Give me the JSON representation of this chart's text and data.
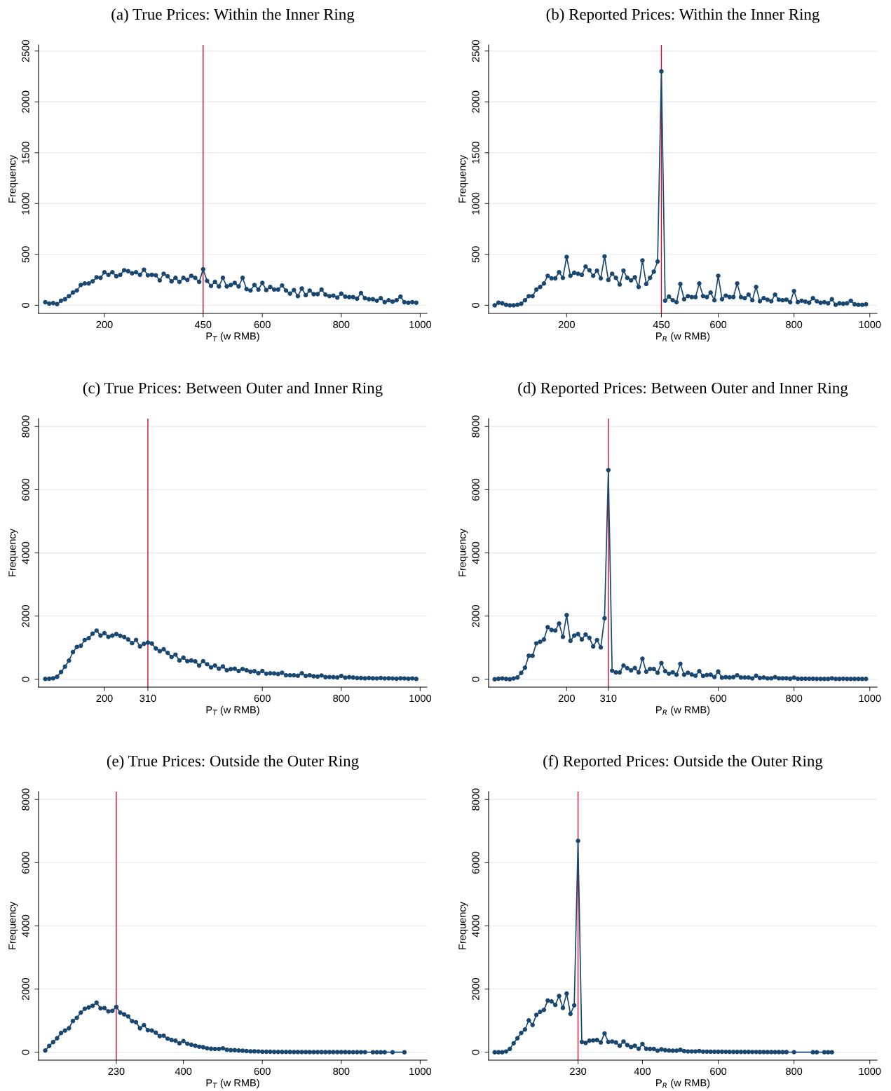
{
  "chart_data": [
    {
      "type": "line",
      "title": "(a) True Prices: Within the Inner Ring",
      "xlabel": "P$_{T}$ (w RMB)",
      "ylabel": "Frequency",
      "color": "#1a476f",
      "marker": "circle",
      "line_style": "solid",
      "grid": "y",
      "xlim": [
        33,
        1017
      ],
      "ylim": [
        -80,
        2560
      ],
      "xticks": [
        200,
        450,
        600,
        800,
        1000
      ],
      "yticks": [
        0,
        500,
        1000,
        1500,
        2000,
        2500
      ],
      "ref_lines": [
        {
          "axis": "x",
          "value": 450,
          "color": "#c8102e"
        }
      ],
      "x": [
        50,
        60,
        70,
        80,
        90,
        100,
        110,
        120,
        130,
        140,
        150,
        160,
        170,
        180,
        190,
        200,
        210,
        220,
        230,
        240,
        250,
        260,
        270,
        280,
        290,
        300,
        310,
        320,
        330,
        340,
        350,
        360,
        370,
        380,
        390,
        400,
        410,
        420,
        430,
        440,
        450,
        460,
        470,
        480,
        490,
        500,
        510,
        520,
        530,
        540,
        550,
        560,
        570,
        580,
        590,
        600,
        610,
        620,
        630,
        640,
        650,
        660,
        670,
        680,
        690,
        700,
        710,
        720,
        730,
        740,
        750,
        760,
        770,
        780,
        790,
        800,
        810,
        820,
        830,
        840,
        850,
        860,
        870,
        880,
        890,
        900,
        910,
        920,
        930,
        940,
        950,
        960,
        970,
        980,
        990
      ],
      "values": [
        30,
        17,
        22,
        12,
        45,
        60,
        90,
        125,
        145,
        200,
        215,
        215,
        235,
        275,
        270,
        325,
        300,
        325,
        285,
        300,
        345,
        335,
        315,
        325,
        300,
        350,
        295,
        300,
        295,
        245,
        310,
        285,
        235,
        270,
        230,
        270,
        250,
        290,
        270,
        230,
        355,
        240,
        190,
        230,
        185,
        270,
        185,
        200,
        220,
        185,
        270,
        160,
        145,
        200,
        155,
        220,
        150,
        180,
        155,
        155,
        195,
        145,
        115,
        150,
        90,
        165,
        100,
        145,
        110,
        110,
        155,
        105,
        90,
        95,
        75,
        115,
        85,
        80,
        80,
        65,
        120,
        70,
        60,
        60,
        45,
        70,
        30,
        50,
        35,
        50,
        85,
        30,
        25,
        30,
        25
      ]
    },
    {
      "type": "line",
      "title": "(b) Reported Prices: Within the Inner Ring",
      "xlabel": "P$_{R}$ (w RMB)",
      "ylabel": "Frequency",
      "color": "#1a476f",
      "marker": "circle",
      "line_style": "solid",
      "grid": "y",
      "xlim": [
        -6,
        1019
      ],
      "ylim": [
        -80,
        2560
      ],
      "xticks": [
        200,
        450,
        600,
        800,
        1000
      ],
      "yticks": [
        0,
        500,
        1000,
        1500,
        2000,
        2500
      ],
      "ref_lines": [
        {
          "axis": "x",
          "value": 450,
          "color": "#c8102e"
        }
      ],
      "x": [
        10,
        20,
        30,
        40,
        50,
        60,
        70,
        80,
        90,
        100,
        110,
        120,
        130,
        140,
        150,
        160,
        170,
        180,
        190,
        200,
        210,
        220,
        230,
        240,
        250,
        260,
        270,
        280,
        290,
        300,
        310,
        320,
        330,
        340,
        350,
        360,
        370,
        380,
        390,
        400,
        410,
        420,
        430,
        440,
        450,
        460,
        470,
        480,
        490,
        500,
        510,
        520,
        530,
        540,
        550,
        560,
        570,
        580,
        590,
        600,
        610,
        620,
        630,
        640,
        650,
        660,
        670,
        680,
        690,
        700,
        710,
        720,
        730,
        740,
        750,
        760,
        770,
        780,
        790,
        800,
        810,
        820,
        830,
        840,
        850,
        860,
        870,
        880,
        890,
        900,
        910,
        920,
        930,
        940,
        950,
        960,
        970,
        980,
        990
      ],
      "values": [
        0,
        25,
        20,
        5,
        0,
        0,
        5,
        15,
        50,
        90,
        90,
        155,
        180,
        215,
        290,
        265,
        265,
        325,
        270,
        475,
        290,
        320,
        310,
        300,
        380,
        345,
        290,
        340,
        265,
        480,
        250,
        310,
        270,
        205,
        340,
        270,
        245,
        275,
        180,
        440,
        210,
        270,
        330,
        430,
        2300,
        45,
        85,
        50,
        30,
        210,
        60,
        90,
        80,
        80,
        215,
        90,
        80,
        125,
        50,
        290,
        60,
        95,
        80,
        80,
        215,
        80,
        70,
        105,
        50,
        180,
        40,
        70,
        55,
        40,
        105,
        55,
        50,
        55,
        30,
        140,
        30,
        45,
        35,
        25,
        70,
        40,
        25,
        30,
        20,
        60,
        5,
        20,
        15,
        20,
        45,
        10,
        5,
        5,
        10
      ]
    },
    {
      "type": "line",
      "title": "(c) True Prices: Between Outer and Inner Ring",
      "xlabel": "P$_{T}$ (w RMB)",
      "ylabel": "Frequency",
      "color": "#1a476f",
      "marker": "circle",
      "line_style": "solid",
      "grid": "y",
      "xlim": [
        33,
        1017
      ],
      "ylim": [
        -250,
        8250
      ],
      "xticks": [
        200,
        310,
        600,
        800,
        1000
      ],
      "yticks": [
        0,
        2000,
        4000,
        6000,
        8000
      ],
      "ref_lines": [
        {
          "axis": "x",
          "value": 310,
          "color": "#c8102e"
        }
      ],
      "x": [
        50,
        60,
        70,
        80,
        90,
        100,
        110,
        120,
        130,
        140,
        150,
        160,
        170,
        180,
        190,
        200,
        210,
        220,
        230,
        240,
        250,
        260,
        270,
        280,
        290,
        300,
        310,
        320,
        330,
        340,
        350,
        360,
        370,
        380,
        390,
        400,
        410,
        420,
        430,
        440,
        450,
        460,
        470,
        480,
        490,
        500,
        510,
        520,
        530,
        540,
        550,
        560,
        570,
        580,
        590,
        600,
        610,
        620,
        630,
        640,
        650,
        660,
        670,
        680,
        690,
        700,
        710,
        720,
        730,
        740,
        750,
        760,
        770,
        780,
        790,
        800,
        810,
        820,
        830,
        840,
        850,
        860,
        870,
        880,
        890,
        900,
        910,
        920,
        930,
        940,
        950,
        960,
        970,
        980,
        990
      ],
      "values": [
        10,
        15,
        30,
        80,
        230,
        400,
        590,
        860,
        1020,
        1060,
        1240,
        1300,
        1445,
        1540,
        1380,
        1460,
        1340,
        1380,
        1430,
        1375,
        1335,
        1260,
        1145,
        1245,
        1040,
        1120,
        1160,
        1130,
        975,
        890,
        950,
        835,
        705,
        780,
        595,
        685,
        570,
        595,
        565,
        430,
        570,
        475,
        375,
        435,
        335,
        405,
        285,
        320,
        335,
        260,
        325,
        285,
        240,
        255,
        190,
        260,
        175,
        190,
        185,
        165,
        205,
        125,
        125,
        125,
        110,
        190,
        105,
        125,
        95,
        85,
        120,
        65,
        70,
        65,
        55,
        105,
        50,
        65,
        55,
        40,
        40,
        30,
        40,
        30,
        25,
        40,
        25,
        30,
        25,
        15,
        30,
        25,
        15,
        25,
        10
      ]
    },
    {
      "type": "line",
      "title": "(d) Reported Prices: Between Outer and Inner Ring",
      "xlabel": "P$_{R}$ (w RMB)",
      "ylabel": "Frequency",
      "color": "#1a476f",
      "marker": "circle",
      "line_style": "solid",
      "grid": "y",
      "xlim": [
        -6,
        1019
      ],
      "ylim": [
        -250,
        8250
      ],
      "xticks": [
        200,
        310,
        600,
        800,
        1000
      ],
      "yticks": [
        0,
        2000,
        4000,
        6000,
        8000
      ],
      "ref_lines": [
        {
          "axis": "x",
          "value": 310,
          "color": "#c8102e"
        }
      ],
      "x": [
        10,
        20,
        30,
        40,
        50,
        60,
        70,
        80,
        90,
        100,
        110,
        120,
        130,
        140,
        150,
        160,
        170,
        180,
        190,
        200,
        210,
        220,
        230,
        240,
        250,
        260,
        270,
        280,
        290,
        300,
        310,
        320,
        330,
        340,
        350,
        360,
        370,
        380,
        390,
        400,
        410,
        420,
        430,
        440,
        450,
        460,
        470,
        480,
        490,
        500,
        510,
        520,
        530,
        540,
        550,
        560,
        570,
        580,
        590,
        600,
        610,
        620,
        630,
        640,
        650,
        660,
        670,
        680,
        690,
        700,
        710,
        720,
        730,
        740,
        750,
        760,
        770,
        780,
        790,
        800,
        810,
        820,
        830,
        840,
        850,
        860,
        870,
        880,
        890,
        900,
        910,
        920,
        930,
        940,
        950,
        960,
        970,
        980,
        990
      ],
      "values": [
        0,
        15,
        25,
        10,
        0,
        25,
        55,
        200,
        365,
        745,
        745,
        1135,
        1185,
        1260,
        1650,
        1560,
        1540,
        1765,
        1340,
        2030,
        1215,
        1380,
        1430,
        1260,
        1415,
        1310,
        1040,
        1240,
        1010,
        1930,
        6620,
        270,
        215,
        215,
        435,
        350,
        280,
        355,
        215,
        650,
        240,
        325,
        325,
        205,
        510,
        255,
        175,
        220,
        145,
        490,
        145,
        205,
        150,
        110,
        255,
        105,
        135,
        145,
        70,
        245,
        50,
        65,
        55,
        65,
        125,
        55,
        55,
        55,
        25,
        110,
        40,
        55,
        30,
        30,
        65,
        30,
        30,
        30,
        15,
        50,
        15,
        15,
        15,
        15,
        15,
        10,
        10,
        10,
        10,
        30,
        10,
        10,
        15,
        10,
        10,
        10,
        10,
        10,
        10
      ]
    },
    {
      "type": "line",
      "title": "(e) True Prices: Outside the Outer Ring",
      "xlabel": "P$_{T}$ (w RMB)",
      "ylabel": "Frequency",
      "color": "#1a476f",
      "marker": "circle",
      "line_style": "solid",
      "grid": "y",
      "xlim": [
        33,
        1017
      ],
      "ylim": [
        -250,
        8250
      ],
      "xticks": [
        230,
        400,
        600,
        800,
        1000
      ],
      "yticks": [
        0,
        2000,
        4000,
        6000,
        8000
      ],
      "ref_lines": [
        {
          "axis": "x",
          "value": 230,
          "color": "#c8102e"
        }
      ],
      "x": [
        50,
        60,
        70,
        80,
        90,
        100,
        110,
        120,
        130,
        140,
        150,
        160,
        170,
        180,
        190,
        200,
        210,
        220,
        230,
        240,
        250,
        260,
        270,
        280,
        290,
        300,
        310,
        320,
        330,
        340,
        350,
        360,
        370,
        380,
        390,
        400,
        410,
        420,
        430,
        440,
        450,
        460,
        470,
        480,
        490,
        500,
        510,
        520,
        530,
        540,
        550,
        560,
        570,
        580,
        590,
        600,
        610,
        620,
        630,
        640,
        650,
        660,
        670,
        680,
        690,
        700,
        710,
        720,
        730,
        740,
        750,
        760,
        770,
        780,
        790,
        800,
        810,
        820,
        830,
        840,
        850,
        860,
        880,
        890,
        900,
        910,
        930,
        960
      ],
      "values": [
        55,
        200,
        320,
        445,
        610,
        690,
        760,
        990,
        1090,
        1255,
        1375,
        1420,
        1470,
        1570,
        1390,
        1400,
        1295,
        1310,
        1435,
        1255,
        1200,
        1135,
        985,
        950,
        760,
        860,
        700,
        690,
        620,
        510,
        525,
        430,
        390,
        365,
        285,
        355,
        270,
        240,
        205,
        175,
        160,
        125,
        110,
        105,
        105,
        125,
        80,
        65,
        65,
        55,
        50,
        40,
        30,
        30,
        25,
        15,
        15,
        15,
        10,
        10,
        10,
        10,
        10,
        8,
        8,
        7,
        7,
        6,
        6,
        6,
        5,
        5,
        5,
        4,
        4,
        4,
        4,
        3,
        3,
        3,
        3,
        3,
        2,
        2,
        2,
        2,
        1,
        1
      ]
    },
    {
      "type": "line",
      "title": "(f) Reported Prices: Outside the Outer Ring",
      "xlabel": "P$_{R}$ (w RMB)",
      "ylabel": "Frequency",
      "color": "#1a476f",
      "marker": "circle",
      "line_style": "solid",
      "grid": "y",
      "xlim": [
        -6,
        1019
      ],
      "ylim": [
        -250,
        8250
      ],
      "xticks": [
        230,
        400,
        600,
        800,
        1000
      ],
      "yticks": [
        0,
        2000,
        4000,
        6000,
        8000
      ],
      "ref_lines": [
        {
          "axis": "x",
          "value": 230,
          "color": "#c8102e"
        }
      ],
      "x": [
        10,
        20,
        30,
        40,
        50,
        60,
        70,
        80,
        90,
        100,
        110,
        120,
        130,
        140,
        150,
        160,
        170,
        180,
        190,
        200,
        210,
        220,
        230,
        240,
        250,
        260,
        270,
        280,
        290,
        300,
        310,
        320,
        330,
        340,
        350,
        360,
        370,
        380,
        390,
        400,
        410,
        420,
        430,
        440,
        450,
        460,
        470,
        480,
        490,
        500,
        510,
        520,
        530,
        540,
        550,
        560,
        570,
        580,
        590,
        600,
        610,
        620,
        630,
        640,
        650,
        660,
        670,
        680,
        690,
        700,
        710,
        720,
        730,
        740,
        750,
        760,
        770,
        780,
        800,
        850,
        860,
        880,
        890,
        900
      ],
      "values": [
        0,
        0,
        0,
        25,
        105,
        285,
        445,
        610,
        720,
        1010,
        865,
        1180,
        1280,
        1340,
        1635,
        1610,
        1500,
        1780,
        1405,
        1860,
        1215,
        1485,
        6690,
        325,
        295,
        365,
        375,
        390,
        310,
        595,
        325,
        340,
        310,
        205,
        340,
        230,
        165,
        205,
        110,
        260,
        110,
        105,
        105,
        50,
        95,
        65,
        55,
        50,
        50,
        80,
        40,
        25,
        25,
        25,
        40,
        20,
        20,
        18,
        18,
        16,
        15,
        14,
        13,
        12,
        12,
        11,
        10,
        10,
        9,
        9,
        8,
        8,
        7,
        7,
        6,
        6,
        5,
        5,
        3,
        2,
        2,
        2,
        2,
        2
      ]
    }
  ]
}
